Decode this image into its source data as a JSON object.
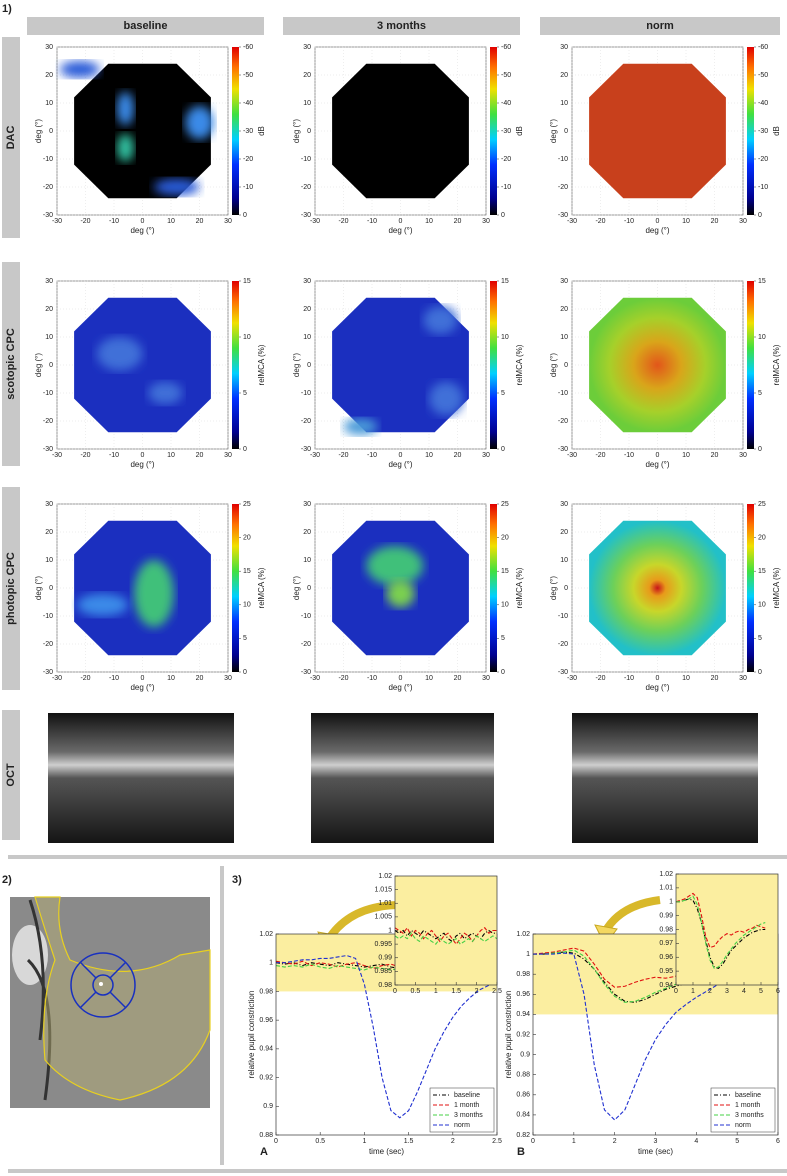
{
  "figure_label": "1)",
  "columns": [
    "baseline",
    "3 months",
    "norm"
  ],
  "rows": [
    {
      "label": "DAC",
      "colorbar_label": "dB",
      "clim": [
        0,
        -60
      ],
      "cticks": [
        0,
        -10,
        -20,
        -30,
        -40,
        -50,
        -60
      ]
    },
    {
      "label": "scotopic CPC",
      "colorbar_label": "relMCA (%)",
      "clim": [
        0,
        15
      ],
      "cticks": [
        0,
        5,
        10,
        15
      ]
    },
    {
      "label": "photopic CPC",
      "colorbar_label": "relMCA (%)",
      "clim": [
        0,
        25
      ],
      "cticks": [
        0,
        5,
        10,
        15,
        20,
        25
      ]
    },
    {
      "label": "OCT"
    }
  ],
  "map_axes": {
    "xlabel": "deg (°)",
    "ylabel": "deg (°)",
    "xlim": [
      -30,
      30
    ],
    "ylim": [
      -30,
      30
    ],
    "ticks": [
      -30,
      -20,
      -10,
      0,
      10,
      20,
      30
    ]
  },
  "panel_2_label": "2)",
  "panel_3_label": "3)",
  "chart_data": [
    {
      "type": "line",
      "label": "A",
      "xlabel": "time (sec)",
      "ylabel": "relative pupil constriction",
      "legend": "lower right",
      "xlim": [
        0,
        2.5
      ],
      "ylim": [
        0.88,
        1.02
      ],
      "xticks": [
        0,
        0.5,
        1,
        1.5,
        2,
        2.5
      ],
      "yticks": [
        0.88,
        0.9,
        0.92,
        0.94,
        0.96,
        0.98,
        1,
        1.02
      ],
      "band": [
        0.98,
        1.02
      ],
      "band_color": "#fbeea0",
      "x": [
        0,
        0.1,
        0.2,
        0.3,
        0.4,
        0.5,
        0.6,
        0.7,
        0.8,
        0.9,
        1,
        1.1,
        1.2,
        1.3,
        1.4,
        1.5,
        1.6,
        1.7,
        1.8,
        1.9,
        2,
        2.1,
        2.2,
        2.3,
        2.4,
        2.5
      ],
      "series": [
        {
          "name": "baseline",
          "color": "#000000",
          "dash": "4 2 1 2",
          "values": [
            1.0,
            0.999,
            1.0,
            0.998,
            1.0,
            0.999,
            0.998,
            1.0,
            0.999,
            0.998,
            0.997,
            0.998,
            0.999,
            0.997,
            0.996,
            0.998,
            0.999,
            0.997,
            0.998,
            0.999,
            0.998,
            0.997,
            0.999,
            1.0,
            0.999,
            0.999
          ]
        },
        {
          "name": "1 month",
          "color": "#e01010",
          "dash": "4 2",
          "values": [
            1.001,
            1.0,
            0.999,
            1.001,
            0.998,
            1.0,
            0.999,
            0.997,
            0.999,
            1.0,
            0.998,
            0.996,
            0.998,
            0.999,
            0.997,
            0.995,
            0.997,
            0.999,
            0.998,
            0.996,
            0.998,
            1.0,
            1.001,
            0.999,
            1.0,
            1.0
          ]
        },
        {
          "name": "3 months",
          "color": "#44d044",
          "dash": "4 2",
          "values": [
            0.998,
            0.997,
            0.998,
            0.997,
            0.999,
            0.997,
            0.996,
            0.998,
            0.997,
            0.996,
            0.995,
            0.997,
            0.996,
            0.995,
            0.996,
            0.997,
            0.995,
            0.996,
            0.997,
            0.996,
            0.998,
            0.997,
            0.996,
            0.997,
            0.998,
            0.997
          ]
        },
        {
          "name": "norm",
          "color": "#2030d0",
          "dash": "4 2",
          "values": [
            1.0,
            1.0,
            1.001,
            1.002,
            1.002,
            1.003,
            1.003,
            1.004,
            1.005,
            1.003,
            0.985,
            0.955,
            0.92,
            0.897,
            0.892,
            0.897,
            0.91,
            0.925,
            0.94,
            0.952,
            0.962,
            0.97,
            0.976,
            0.981,
            0.984,
            0.987
          ]
        }
      ]
    },
    {
      "type": "line",
      "xlim": [
        0,
        2.5
      ],
      "ylim": [
        0.98,
        1.02
      ],
      "xticks": [
        0,
        0.5,
        1,
        1.5,
        2,
        2.5
      ],
      "yticks": [
        0.98,
        0.985,
        0.99,
        0.995,
        1,
        1.005,
        1.01,
        1.015,
        1.02
      ],
      "band": [
        0.98,
        1.02
      ],
      "band_color": "#fbeea0",
      "x": [
        0,
        0.1,
        0.2,
        0.3,
        0.4,
        0.5,
        0.6,
        0.7,
        0.8,
        0.9,
        1,
        1.1,
        1.2,
        1.3,
        1.4,
        1.5,
        1.6,
        1.7,
        1.8,
        1.9,
        2,
        2.1,
        2.2,
        2.3,
        2.4,
        2.5
      ],
      "series": [
        {
          "color": "#000000",
          "dash": "4 2 1 2",
          "values": [
            1.0,
            0.999,
            1.0,
            0.998,
            1.0,
            0.999,
            0.998,
            1.0,
            0.999,
            0.998,
            0.997,
            0.998,
            0.999,
            0.997,
            0.996,
            0.998,
            0.999,
            0.997,
            0.998,
            0.999,
            0.998,
            0.997,
            0.999,
            1.0,
            0.999,
            0.999
          ]
        },
        {
          "color": "#e01010",
          "dash": "4 2",
          "values": [
            1.001,
            1.0,
            0.999,
            1.001,
            0.998,
            1.0,
            0.999,
            0.997,
            0.999,
            1.0,
            0.998,
            0.996,
            0.998,
            0.999,
            0.997,
            0.995,
            0.997,
            0.999,
            0.998,
            0.996,
            0.998,
            1.0,
            1.001,
            0.999,
            1.0,
            1.0
          ]
        },
        {
          "color": "#44d044",
          "dash": "4 2",
          "values": [
            0.998,
            0.997,
            0.998,
            0.997,
            0.999,
            0.997,
            0.996,
            0.998,
            0.997,
            0.996,
            0.995,
            0.997,
            0.996,
            0.995,
            0.996,
            0.997,
            0.995,
            0.996,
            0.997,
            0.996,
            0.998,
            0.997,
            0.996,
            0.997,
            0.998,
            0.997
          ]
        }
      ]
    },
    {
      "type": "line",
      "label": "B",
      "xlabel": "time (sec)",
      "ylabel": "relative pupil constriction",
      "legend": "lower right",
      "xlim": [
        0,
        6
      ],
      "ylim": [
        0.82,
        1.02
      ],
      "xticks": [
        0,
        1,
        2,
        3,
        4,
        5,
        6
      ],
      "yticks": [
        0.82,
        0.84,
        0.86,
        0.88,
        0.9,
        0.92,
        0.94,
        0.96,
        0.98,
        1,
        1.02
      ],
      "band": [
        0.94,
        1.02
      ],
      "band_color": "#fbeea0",
      "x": [
        0,
        0.25,
        0.5,
        0.75,
        1,
        1.25,
        1.5,
        1.75,
        2,
        2.25,
        2.5,
        2.75,
        3,
        3.25,
        3.5,
        3.75,
        4,
        4.25,
        4.5,
        4.75,
        5,
        5.25
      ],
      "series": [
        {
          "name": "baseline",
          "color": "#000000",
          "dash": "4 2 1 2",
          "values": [
            1.0,
            1.0,
            1.001,
            1.002,
            1.001,
            0.995,
            0.985,
            0.972,
            0.96,
            0.953,
            0.952,
            0.955,
            0.96,
            0.965,
            0.968,
            0.971,
            0.974,
            0.976,
            0.978,
            0.979,
            0.98,
            0.98
          ]
        },
        {
          "name": "1 month",
          "color": "#e01010",
          "dash": "4 2",
          "values": [
            1.0,
            1.001,
            1.002,
            1.004,
            1.006,
            1.003,
            0.99,
            0.975,
            0.967,
            0.968,
            0.972,
            0.975,
            0.977,
            0.976,
            0.978,
            0.979,
            0.978,
            0.98,
            0.981,
            0.983,
            0.982,
            0.981
          ]
        },
        {
          "name": "3 months",
          "color": "#44d044",
          "dash": "4 2",
          "values": [
            1.0,
            1.0,
            1.001,
            1.002,
            1.004,
            0.998,
            0.985,
            0.97,
            0.958,
            0.952,
            0.953,
            0.957,
            0.962,
            0.966,
            0.97,
            0.973,
            0.976,
            0.978,
            0.98,
            0.982,
            0.984,
            0.985
          ]
        },
        {
          "name": "norm",
          "color": "#2030d0",
          "dash": "4 2",
          "values": [
            1.0,
            1.0,
            1.0,
            1.001,
            1.0,
            0.96,
            0.89,
            0.845,
            0.835,
            0.845,
            0.87,
            0.895,
            0.915,
            0.93,
            0.942,
            0.95,
            0.957,
            0.963,
            0.969,
            0.974,
            0.978,
            0.981
          ]
        }
      ]
    },
    {
      "type": "line",
      "xlim": [
        0,
        6
      ],
      "ylim": [
        0.94,
        1.02
      ],
      "xticks": [
        0,
        1,
        2,
        3,
        4,
        5,
        6
      ],
      "yticks": [
        0.94,
        0.95,
        0.96,
        0.97,
        0.98,
        0.99,
        1,
        1.01,
        1.02
      ],
      "band": [
        0.94,
        1.02
      ],
      "band_color": "#fbeea0",
      "x": [
        0,
        0.25,
        0.5,
        0.75,
        1,
        1.25,
        1.5,
        1.75,
        2,
        2.25,
        2.5,
        2.75,
        3,
        3.25,
        3.5,
        3.75,
        4,
        4.25,
        4.5,
        4.75,
        5,
        5.25
      ],
      "series": [
        {
          "color": "#000000",
          "dash": "4 2 1 2",
          "values": [
            1.0,
            1.0,
            1.001,
            1.002,
            1.001,
            0.995,
            0.985,
            0.972,
            0.96,
            0.953,
            0.952,
            0.955,
            0.96,
            0.965,
            0.968,
            0.971,
            0.974,
            0.976,
            0.978,
            0.979,
            0.98,
            0.98
          ]
        },
        {
          "color": "#e01010",
          "dash": "4 2",
          "values": [
            1.0,
            1.001,
            1.002,
            1.004,
            1.006,
            1.003,
            0.99,
            0.975,
            0.967,
            0.968,
            0.972,
            0.975,
            0.977,
            0.976,
            0.978,
            0.979,
            0.978,
            0.98,
            0.981,
            0.983,
            0.982,
            0.981
          ]
        },
        {
          "color": "#44d044",
          "dash": "4 2",
          "values": [
            1.0,
            1.0,
            1.001,
            1.002,
            1.004,
            0.998,
            0.985,
            0.97,
            0.958,
            0.952,
            0.953,
            0.957,
            0.962,
            0.966,
            0.97,
            0.973,
            0.976,
            0.978,
            0.98,
            0.982,
            0.984,
            0.985
          ]
        }
      ]
    }
  ]
}
